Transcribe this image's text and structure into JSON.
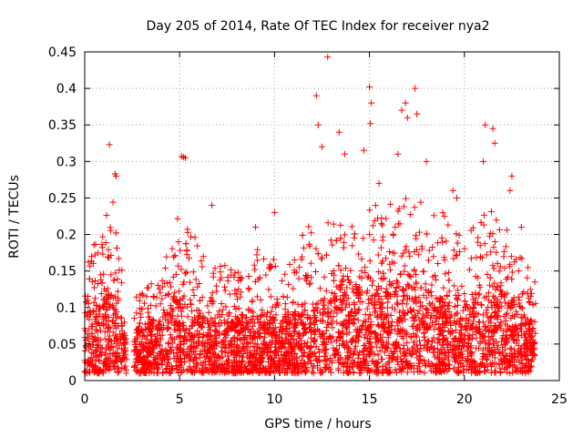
{
  "chart_data": {
    "type": "scatter",
    "title": "Day 205 of 2014, Rate Of TEC Index for receiver nya2",
    "xlabel": "GPS time / hours",
    "ylabel": "ROTI / TECUs",
    "xlim": [
      0,
      25
    ],
    "ylim": [
      0,
      0.45
    ],
    "xticks": [
      0,
      5,
      10,
      15,
      20,
      25
    ],
    "yticks": [
      0,
      0.05,
      0.1,
      0.15,
      0.2,
      0.25,
      0.3,
      0.35,
      0.4,
      0.45
    ],
    "xtick_labels": [
      "0",
      "5",
      "10",
      "15",
      "20",
      "25"
    ],
    "ytick_labels": [
      "0",
      "0.05",
      "0.1",
      "0.15",
      "0.2",
      "0.25",
      "0.3",
      "0.35",
      "0.4",
      "0.45"
    ],
    "grid": true,
    "marker": "+",
    "marker_color": "#ff0000",
    "x_extent_hours": [
      0,
      23.75
    ],
    "data_gap_hours": [
      2.2,
      2.6
    ],
    "series": [
      {
        "name": "ROTI",
        "envelope": [
          {
            "x": 0.0,
            "base": 0.1,
            "top": 0.16
          },
          {
            "x": 0.5,
            "base": 0.1,
            "top": 0.19
          },
          {
            "x": 1.0,
            "base": 0.11,
            "top": 0.22
          },
          {
            "x": 1.5,
            "base": 0.12,
            "top": 0.245
          },
          {
            "x": 2.0,
            "base": 0.08,
            "top": 0.15
          },
          {
            "x": 2.6,
            "base": 0.06,
            "top": 0.12
          },
          {
            "x": 3.0,
            "base": 0.07,
            "top": 0.12
          },
          {
            "x": 4.0,
            "base": 0.08,
            "top": 0.15
          },
          {
            "x": 4.8,
            "base": 0.11,
            "top": 0.23
          },
          {
            "x": 5.5,
            "base": 0.11,
            "top": 0.21
          },
          {
            "x": 6.5,
            "base": 0.08,
            "top": 0.17
          },
          {
            "x": 8.0,
            "base": 0.08,
            "top": 0.15
          },
          {
            "x": 9.5,
            "base": 0.09,
            "top": 0.19
          },
          {
            "x": 10.5,
            "base": 0.08,
            "top": 0.16
          },
          {
            "x": 12.0,
            "base": 0.1,
            "top": 0.22
          },
          {
            "x": 13.0,
            "base": 0.12,
            "top": 0.23
          },
          {
            "x": 14.0,
            "base": 0.12,
            "top": 0.22
          },
          {
            "x": 15.0,
            "base": 0.13,
            "top": 0.24
          },
          {
            "x": 16.5,
            "base": 0.13,
            "top": 0.25
          },
          {
            "x": 17.5,
            "base": 0.13,
            "top": 0.25
          },
          {
            "x": 19.0,
            "base": 0.11,
            "top": 0.23
          },
          {
            "x": 20.0,
            "base": 0.09,
            "top": 0.19
          },
          {
            "x": 21.0,
            "base": 0.12,
            "top": 0.24
          },
          {
            "x": 22.0,
            "base": 0.12,
            "top": 0.23
          },
          {
            "x": 23.0,
            "base": 0.09,
            "top": 0.17
          },
          {
            "x": 23.75,
            "base": 0.08,
            "top": 0.14
          }
        ],
        "points": [
          [
            1.3,
            0.323
          ],
          [
            1.6,
            0.283
          ],
          [
            1.65,
            0.28
          ],
          [
            5.1,
            0.307
          ],
          [
            5.2,
            0.306
          ],
          [
            5.3,
            0.305
          ],
          [
            12.2,
            0.39
          ],
          [
            12.3,
            0.35
          ],
          [
            12.5,
            0.32
          ],
          [
            12.8,
            0.443
          ],
          [
            13.4,
            0.34
          ],
          [
            13.7,
            0.31
          ],
          [
            14.7,
            0.315
          ],
          [
            15.0,
            0.402
          ],
          [
            15.1,
            0.38
          ],
          [
            15.05,
            0.352
          ],
          [
            15.5,
            0.27
          ],
          [
            16.5,
            0.31
          ],
          [
            16.7,
            0.37
          ],
          [
            16.9,
            0.38
          ],
          [
            17.0,
            0.36
          ],
          [
            17.4,
            0.4
          ],
          [
            17.5,
            0.365
          ],
          [
            18.0,
            0.3
          ],
          [
            21.1,
            0.35
          ],
          [
            21.5,
            0.345
          ],
          [
            21.6,
            0.325
          ],
          [
            21.0,
            0.3
          ],
          [
            22.5,
            0.28
          ],
          [
            22.4,
            0.26
          ],
          [
            6.7,
            0.24
          ],
          [
            10.0,
            0.23
          ],
          [
            9.0,
            0.21
          ],
          [
            19.4,
            0.26
          ],
          [
            19.6,
            0.25
          ],
          [
            23.0,
            0.21
          ]
        ]
      }
    ]
  }
}
